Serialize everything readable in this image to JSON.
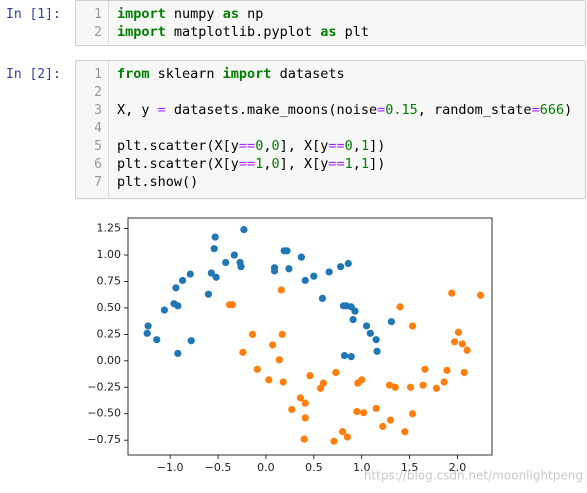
{
  "cells": [
    {
      "prompt": "In  [1]:",
      "line_numbers": [
        1,
        2
      ],
      "lines": [
        [
          {
            "text": "import",
            "color": "#008000",
            "weight": "bold"
          },
          " numpy ",
          {
            "text": "as",
            "color": "#008000",
            "weight": "bold"
          },
          " np"
        ],
        [
          {
            "text": "import",
            "color": "#008000",
            "weight": "bold"
          },
          " matplotlib.pyplot ",
          {
            "text": "as",
            "color": "#008000",
            "weight": "bold"
          },
          " plt"
        ]
      ]
    },
    {
      "prompt": "In  [2]:",
      "line_numbers": [
        1,
        2,
        3,
        4,
        5,
        6,
        7
      ],
      "lines": [
        [
          {
            "text": "from",
            "color": "#008000",
            "weight": "bold"
          },
          " sklearn ",
          {
            "text": "import",
            "color": "#008000",
            "weight": "bold"
          },
          " datasets"
        ],
        [],
        [
          "X, y ",
          {
            "text": "=",
            "color": "#aa22ff"
          },
          " datasets.make_moons(noise",
          {
            "text": "=",
            "color": "#aa22ff"
          },
          {
            "text": "0.15",
            "color": "#008000"
          },
          ", random_state",
          {
            "text": "=",
            "color": "#aa22ff"
          },
          {
            "text": "666",
            "color": "#008000"
          },
          ")"
        ],
        [],
        [
          "plt.scatter(X[y",
          {
            "text": "==",
            "color": "#aa22ff"
          },
          {
            "text": "0",
            "color": "#008000"
          },
          ",",
          {
            "text": "0",
            "color": "#008000"
          },
          "], X[y",
          {
            "text": "==",
            "color": "#aa22ff"
          },
          {
            "text": "0",
            "color": "#008000"
          },
          ",",
          {
            "text": "1",
            "color": "#008000"
          },
          "])"
        ],
        [
          "plt.scatter(X[y",
          {
            "text": "==",
            "color": "#aa22ff"
          },
          {
            "text": "1",
            "color": "#008000"
          },
          ",",
          {
            "text": "0",
            "color": "#008000"
          },
          "], X[y",
          {
            "text": "==",
            "color": "#aa22ff"
          },
          {
            "text": "1",
            "color": "#008000"
          },
          ",",
          {
            "text": "1",
            "color": "#008000"
          },
          "])"
        ],
        [
          "plt.show()"
        ]
      ]
    }
  ],
  "chart_data": {
    "type": "scatter",
    "xlim": [
      -1.44,
      2.36
    ],
    "ylim": [
      -0.89,
      1.35
    ],
    "xticks": [
      {
        "value": -1,
        "label": "−1.0"
      },
      {
        "value": -0.5,
        "label": "−0.5"
      },
      {
        "value": 0,
        "label": "0.0"
      },
      0.5,
      {
        "value": 1,
        "label": "1.0"
      },
      1.5,
      {
        "value": 2,
        "label": "2.0"
      }
    ],
    "yticks": [
      1.25,
      {
        "value": 1,
        "label": "1.00"
      },
      0.75,
      {
        "value": 0.5,
        "label": "0.50"
      },
      0.25,
      {
        "value": 0,
        "label": "0.00"
      },
      {
        "value": -0.25,
        "label": "−0.25"
      },
      {
        "value": -0.5,
        "label": "−0.50"
      },
      {
        "value": -0.75,
        "label": "−0.75"
      }
    ],
    "series": [
      {
        "color": "#1f77b4",
        "x": [
          -1.23,
          -1.24,
          -1.14,
          -1.06,
          -0.96,
          -0.92,
          -0.94,
          -0.87,
          -0.79,
          -0.92,
          -0.78,
          -0.6,
          -0.57,
          -0.52,
          -0.54,
          -0.53,
          -0.42,
          -0.33,
          -0.27,
          -0.26,
          -0.23,
          0.09,
          0.09,
          0.19,
          0.22,
          0.24,
          0.37,
          0.41,
          0.5,
          0.59,
          0.66,
          0.78,
          0.86,
          0.81,
          0.84,
          0.89,
          0.91,
          0.93,
          1.05,
          1.09,
          1.15,
          1.16,
          1.31,
          0.89,
          0.82
        ],
        "values": [
          0.33,
          0.26,
          0.2,
          0.48,
          0.54,
          0.52,
          0.69,
          0.76,
          0.82,
          0.07,
          0.19,
          0.63,
          0.83,
          0.79,
          1.06,
          1.17,
          0.93,
          1.0,
          0.93,
          0.89,
          1.24,
          0.88,
          0.85,
          1.04,
          1.04,
          0.87,
          0.98,
          0.76,
          0.8,
          0.59,
          0.84,
          0.89,
          0.92,
          0.52,
          0.52,
          0.51,
          0.39,
          0.47,
          0.33,
          0.26,
          0.2,
          0.09,
          0.37,
          0.04,
          0.05
        ]
      },
      {
        "color": "#ff7f0e",
        "x": [
          -0.38,
          -0.35,
          -0.24,
          -0.14,
          -0.09,
          0.03,
          0.07,
          0.16,
          0.17,
          0.14,
          0.18,
          0.27,
          0.36,
          0.41,
          0.41,
          0.4,
          0.46,
          0.57,
          0.6,
          0.71,
          0.8,
          0.85,
          0.73,
          0.96,
          1.0,
          0.95,
          1.02,
          1.15,
          1.22,
          1.3,
          1.29,
          1.35,
          1.4,
          1.45,
          1.51,
          1.53,
          1.53,
          1.64,
          1.66,
          1.78,
          1.86,
          1.89,
          1.94,
          1.97,
          2.01,
          2.05,
          2.07,
          2.1,
          2.24
        ],
        "values": [
          0.53,
          0.53,
          0.08,
          0.25,
          -0.08,
          -0.18,
          0.15,
          0.67,
          0.25,
          0.01,
          -0.2,
          -0.46,
          -0.35,
          -0.4,
          -0.54,
          -0.74,
          -0.14,
          -0.26,
          -0.21,
          -0.76,
          -0.67,
          -0.72,
          -0.11,
          -0.21,
          -0.18,
          -0.48,
          -0.49,
          -0.45,
          -0.62,
          -0.56,
          -0.23,
          -0.25,
          0.51,
          -0.67,
          -0.25,
          0.33,
          -0.5,
          -0.23,
          -0.08,
          -0.26,
          -0.2,
          -0.09,
          0.64,
          0.18,
          0.27,
          0.16,
          -0.11,
          0.1,
          0.62
        ]
      }
    ]
  },
  "watermark": "https://blog.csdn.net/moonlightpeng"
}
